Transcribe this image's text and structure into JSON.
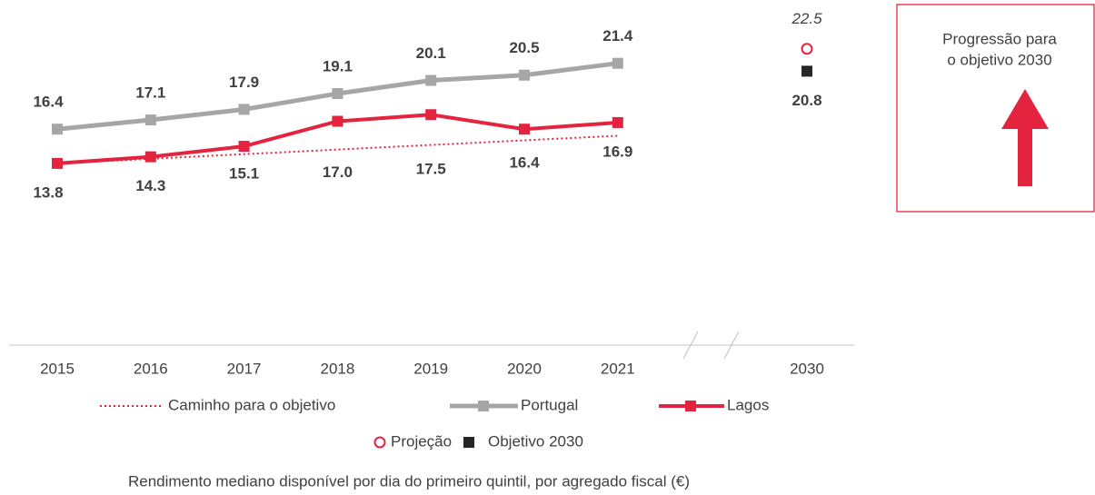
{
  "chart_data": {
    "type": "line",
    "categories": [
      "2015",
      "2016",
      "2017",
      "2018",
      "2019",
      "2020",
      "2021"
    ],
    "series": [
      {
        "name": "Caminho para o objetivo",
        "color": "#e4233e",
        "style": "dotted",
        "values": [
          13.8,
          14.15,
          14.5,
          14.85,
          15.2,
          15.55,
          15.9
        ]
      },
      {
        "name": "Portugal",
        "color": "#a6a6a6",
        "values": [
          16.4,
          17.1,
          17.9,
          19.1,
          20.1,
          20.5,
          21.4
        ]
      },
      {
        "name": "Lagos",
        "color": "#e4233e",
        "values": [
          13.8,
          14.3,
          15.1,
          17.0,
          17.5,
          16.4,
          16.9
        ],
        "value_labels": [
          "13.8",
          "14.3",
          "15.1",
          "17.0",
          "17.5",
          "16.4",
          "16.9"
        ]
      }
    ],
    "target_category": "2030",
    "points": [
      {
        "name": "Projeção",
        "color": "#e4233e",
        "value": 22.5
      },
      {
        "name": "Objetivo 2030",
        "color": "#262626",
        "value": 20.8
      }
    ],
    "ylim": [
      0,
      26
    ],
    "caption": "Rendimento mediano disponível por dia do primeiro quintil, por agregado fiscal (€)",
    "box_text": [
      "Progressão para",
      "o objetivo 2030"
    ]
  }
}
